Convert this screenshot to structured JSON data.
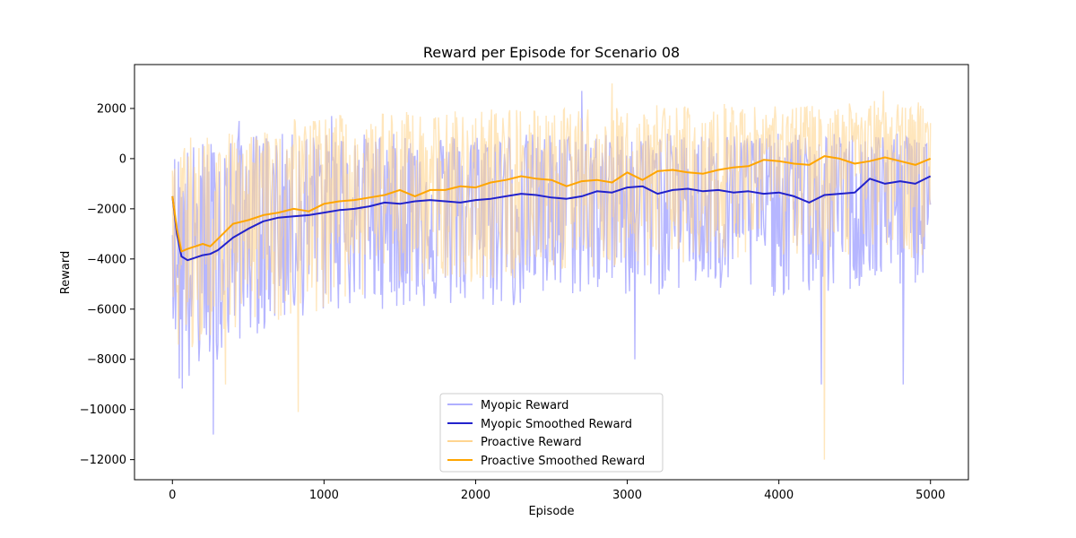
{
  "chart_data": {
    "type": "line",
    "title": "Reward per Episode for Scenario 08",
    "xlabel": "Episode",
    "ylabel": "Reward",
    "xlim": [
      -250,
      5250
    ],
    "ylim": [
      -12800,
      3750
    ],
    "xticks": [
      0,
      1000,
      2000,
      3000,
      4000,
      5000
    ],
    "yticks": [
      -12000,
      -10000,
      -8000,
      -6000,
      -4000,
      -2000,
      0,
      2000
    ],
    "grid": false,
    "legend_position": "lower-center",
    "series": [
      {
        "name": "Myopic Reward",
        "color": "#6e6eff",
        "kind": "raw",
        "x": [
          0,
          50,
          100,
          150,
          200,
          300,
          400,
          500,
          600,
          700,
          800,
          900,
          1000,
          1200,
          1400,
          1600,
          1800,
          2000,
          2200,
          2400,
          2600,
          2800,
          3000,
          3200,
          3400,
          3600,
          3800,
          4000,
          4200,
          4400,
          4600,
          4800,
          5000
        ],
        "y_center": [
          -1500,
          -4000,
          -4100,
          -3900,
          -3800,
          -3400,
          -3000,
          -2700,
          -2500,
          -2400,
          -2300,
          -2200,
          -2100,
          -1900,
          -1700,
          -1800,
          -1700,
          -1700,
          -1550,
          -1500,
          -1550,
          -1450,
          -1200,
          -1300,
          -1250,
          -1350,
          -1400,
          -1500,
          -1400,
          -1300,
          -900,
          -1000,
          -700
        ],
        "y_high": [
          0,
          500,
          600,
          600,
          700,
          800,
          900,
          1000,
          1000,
          1000,
          1000,
          1000,
          1000,
          1000,
          1000,
          1000,
          1000,
          1000,
          1000,
          1000,
          1000,
          1000,
          1000,
          1000,
          1000,
          1000,
          1000,
          1000,
          1000,
          1000,
          1000,
          1000,
          1000
        ],
        "y_low": [
          -6000,
          -10000,
          -9500,
          -9000,
          -8500,
          -8000,
          -7500,
          -7000,
          -7000,
          -6500,
          -6500,
          -6200,
          -6200,
          -6000,
          -6000,
          -6000,
          -6000,
          -6000,
          -6000,
          -6000,
          -5500,
          -5500,
          -5500,
          -5500,
          -5200,
          -5500,
          -5500,
          -5500,
          -5500,
          -5500,
          -5200,
          -5200,
          -5000
        ],
        "y_extremes": [
          [
            270,
            -11000
          ],
          [
            3050,
            -8000
          ],
          [
            4280,
            -9000
          ],
          [
            4820,
            -9000
          ],
          [
            2700,
            2700
          ],
          [
            440,
            1500
          ],
          [
            1050,
            1700
          ]
        ]
      },
      {
        "name": "Myopic Smoothed Reward",
        "color": "#2222cc",
        "kind": "smooth",
        "x": [
          0,
          30,
          60,
          100,
          150,
          200,
          250,
          300,
          400,
          500,
          600,
          700,
          800,
          900,
          1000,
          1100,
          1200,
          1300,
          1400,
          1500,
          1600,
          1700,
          1800,
          1900,
          2000,
          2100,
          2200,
          2300,
          2400,
          2500,
          2600,
          2700,
          2800,
          2900,
          3000,
          3100,
          3200,
          3300,
          3400,
          3500,
          3600,
          3700,
          3800,
          3900,
          4000,
          4100,
          4200,
          4300,
          4400,
          4500,
          4600,
          4700,
          4800,
          4900,
          5000
        ],
        "y": [
          -1500,
          -3000,
          -3900,
          -4050,
          -3950,
          -3850,
          -3800,
          -3650,
          -3150,
          -2800,
          -2500,
          -2350,
          -2300,
          -2250,
          -2150,
          -2050,
          -2000,
          -1900,
          -1750,
          -1800,
          -1700,
          -1650,
          -1700,
          -1750,
          -1650,
          -1600,
          -1500,
          -1400,
          -1450,
          -1550,
          -1600,
          -1500,
          -1300,
          -1350,
          -1150,
          -1100,
          -1400,
          -1250,
          -1200,
          -1300,
          -1250,
          -1350,
          -1300,
          -1400,
          -1350,
          -1500,
          -1750,
          -1450,
          -1400,
          -1350,
          -800,
          -1000,
          -900,
          -1000,
          -700
        ]
      },
      {
        "name": "Proactive Reward",
        "color": "#ffd590",
        "kind": "raw",
        "x": [
          0,
          50,
          100,
          150,
          200,
          300,
          400,
          500,
          600,
          700,
          800,
          900,
          1000,
          1200,
          1400,
          1600,
          1800,
          2000,
          2200,
          2400,
          2600,
          2800,
          3000,
          3200,
          3400,
          3600,
          3800,
          4000,
          4200,
          4400,
          4600,
          4800,
          5000
        ],
        "y_center": [
          -1500,
          -3600,
          -3500,
          -3400,
          -3300,
          -2900,
          -2600,
          -2300,
          -2200,
          -2100,
          -2000,
          -1900,
          -1800,
          -1500,
          -1300,
          -1200,
          -1000,
          -900,
          -800,
          -700,
          -900,
          -700,
          -600,
          -500,
          -500,
          -400,
          -300,
          -200,
          -100,
          -100,
          0,
          -100,
          0
        ],
        "y_high": [
          500,
          800,
          900,
          900,
          1000,
          1000,
          1000,
          1200,
          1200,
          1500,
          1600,
          1600,
          1700,
          1800,
          1800,
          1900,
          2000,
          2000,
          2000,
          2000,
          2000,
          2100,
          2200,
          2200,
          2200,
          2200,
          2200,
          2200,
          2200,
          2200,
          2300,
          2300,
          2300
        ],
        "y_low": [
          -6000,
          -9000,
          -8500,
          -8000,
          -7500,
          -7000,
          -6800,
          -6500,
          -6500,
          -6500,
          -6500,
          -6200,
          -6000,
          -5500,
          -5500,
          -5000,
          -5000,
          -5000,
          -4800,
          -4800,
          -4500,
          -4500,
          -4500,
          -4200,
          -4200,
          -4000,
          -4000,
          -4000,
          -4000,
          -4000,
          -4000,
          -4000,
          -4000
        ],
        "y_extremes": [
          [
            830,
            -10100
          ],
          [
            4300,
            -12000
          ],
          [
            2900,
            3000
          ],
          [
            4690,
            2700
          ],
          [
            350,
            -9000
          ]
        ]
      },
      {
        "name": "Proactive Smoothed Reward",
        "color": "#ffa500",
        "kind": "smooth",
        "x": [
          0,
          30,
          60,
          100,
          150,
          200,
          250,
          300,
          400,
          500,
          600,
          700,
          800,
          900,
          1000,
          1100,
          1200,
          1300,
          1400,
          1500,
          1600,
          1700,
          1800,
          1900,
          2000,
          2100,
          2200,
          2300,
          2400,
          2500,
          2600,
          2700,
          2800,
          2900,
          3000,
          3100,
          3200,
          3300,
          3400,
          3500,
          3600,
          3700,
          3800,
          3900,
          4000,
          4100,
          4200,
          4300,
          4400,
          4500,
          4600,
          4700,
          4800,
          4900,
          5000
        ],
        "y": [
          -1500,
          -2800,
          -3700,
          -3600,
          -3500,
          -3400,
          -3500,
          -3200,
          -2600,
          -2450,
          -2250,
          -2150,
          -2000,
          -2100,
          -1800,
          -1700,
          -1650,
          -1550,
          -1450,
          -1250,
          -1500,
          -1250,
          -1250,
          -1100,
          -1150,
          -950,
          -850,
          -700,
          -800,
          -850,
          -1100,
          -900,
          -850,
          -950,
          -550,
          -850,
          -500,
          -450,
          -550,
          -600,
          -450,
          -350,
          -300,
          -50,
          -100,
          -200,
          -250,
          100,
          0,
          -200,
          -100,
          50,
          -100,
          -250,
          0
        ]
      }
    ]
  }
}
